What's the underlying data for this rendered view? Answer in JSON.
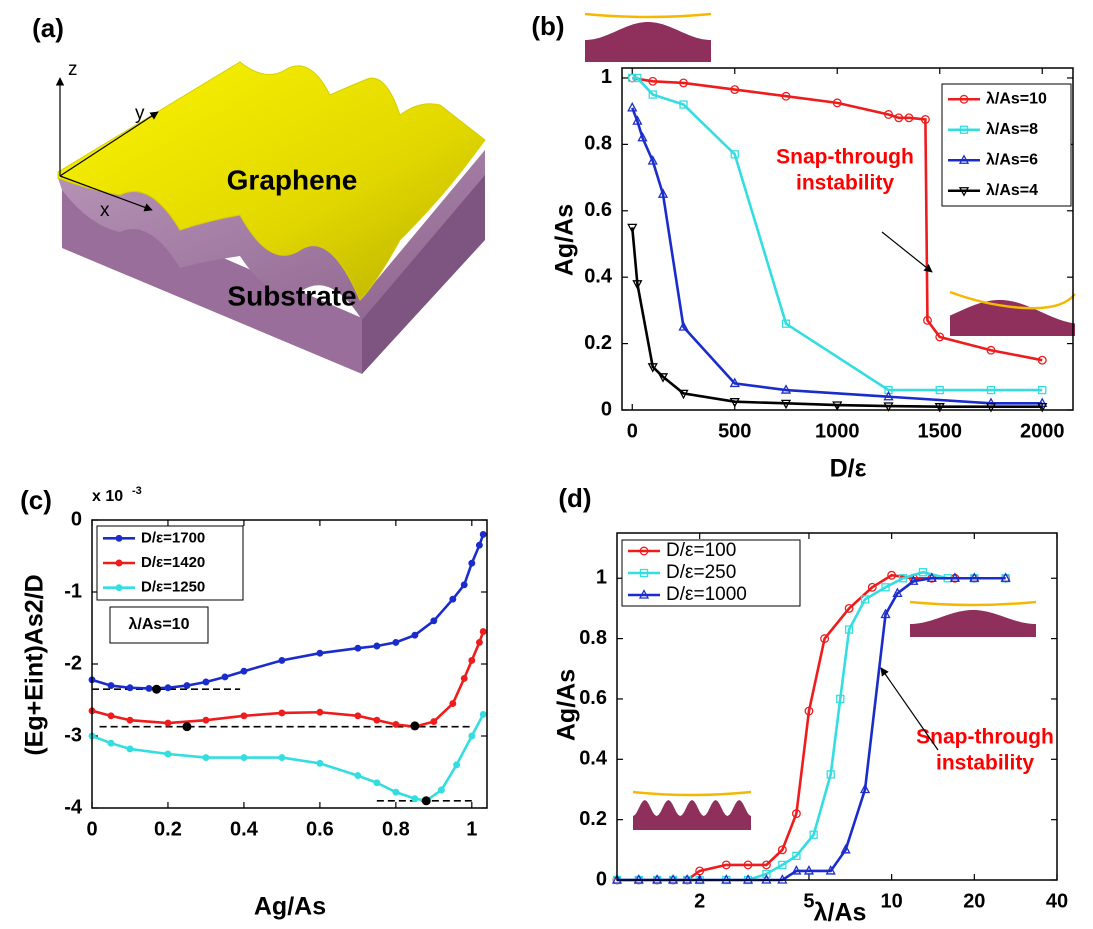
{
  "illustration": {
    "panel_label": "(a)",
    "axis_labels": [
      "z",
      "y",
      "x"
    ],
    "graphene": "Graphene",
    "substrate": "Substrate"
  },
  "chart_data": [
    {
      "type": "line",
      "panel_label": "(b)",
      "xlabel": "D/ε",
      "ylabel": "Ag/As",
      "xlim": [
        -50,
        2150
      ],
      "ylim": [
        0,
        1.03
      ],
      "xticks": [
        0,
        500,
        1000,
        1500,
        2000
      ],
      "yticks": [
        0,
        0.2,
        0.4,
        0.6,
        0.8,
        1
      ],
      "legend": "upper right",
      "annotation": [
        "Snap-through",
        "instability"
      ],
      "annotation_color": "#ff0000",
      "series": [
        {
          "name": "λ/As=10",
          "color": "#ee1c1c",
          "marker": "o",
          "x": [
            0,
            100,
            250,
            500,
            750,
            1000,
            1250,
            1300,
            1350,
            1430,
            1440,
            1500,
            1750,
            2000
          ],
          "values": [
            1,
            0.99,
            0.985,
            0.965,
            0.945,
            0.925,
            0.89,
            0.88,
            0.88,
            0.875,
            0.27,
            0.22,
            0.18,
            0.15
          ]
        },
        {
          "name": "λ/As=8",
          "color": "#33dde0",
          "marker": "s",
          "x": [
            0,
            25,
            100,
            250,
            500,
            750,
            1250,
            1500,
            1750,
            2000
          ],
          "values": [
            1,
            1,
            0.95,
            0.92,
            0.77,
            0.26,
            0.06,
            0.06,
            0.06,
            0.06
          ]
        },
        {
          "name": "λ/As=6",
          "color": "#1a2ccc",
          "marker": "^",
          "x": [
            0,
            25,
            50,
            100,
            150,
            250,
            500,
            750,
            1250,
            1750,
            2000
          ],
          "values": [
            0.91,
            0.87,
            0.82,
            0.75,
            0.65,
            0.25,
            0.08,
            0.06,
            0.04,
            0.02,
            0.02
          ]
        },
        {
          "name": "λ/As=4",
          "color": "#000000",
          "marker": "v",
          "x": [
            0,
            25,
            100,
            150,
            250,
            500,
            750,
            1000,
            1250,
            1500,
            1750,
            2000
          ],
          "values": [
            0.55,
            0.38,
            0.13,
            0.1,
            0.05,
            0.025,
            0.02,
            0.015,
            0.012,
            0.01,
            0.01,
            0.01
          ]
        }
      ]
    },
    {
      "type": "line",
      "panel_label": "(c)",
      "xlabel": "Ag/As",
      "ylabel": "(Eg+Eint)As2/D",
      "y_multiplier": {
        "base": "x 10",
        "exponent": "-3"
      },
      "xlim": [
        0,
        1.04
      ],
      "ylim": [
        -4,
        0
      ],
      "xticks": [
        0,
        0.2,
        0.4,
        0.6,
        0.8,
        1
      ],
      "yticks": [
        -4,
        -3,
        -2,
        -1,
        0
      ],
      "legend": "upper left",
      "note": "λ/As=10",
      "series": [
        {
          "name": "D/ε=1700",
          "color": "#1a2ccc",
          "marker": ".",
          "x": [
            0,
            0.05,
            0.1,
            0.15,
            0.2,
            0.25,
            0.3,
            0.35,
            0.4,
            0.5,
            0.6,
            0.7,
            0.75,
            0.8,
            0.85,
            0.9,
            0.95,
            0.98,
            1.0,
            1.02,
            1.03
          ],
          "values": [
            -2.22,
            -2.3,
            -2.33,
            -2.34,
            -2.33,
            -2.3,
            -2.25,
            -2.18,
            -2.1,
            -1.95,
            -1.85,
            -1.78,
            -1.75,
            -1.7,
            -1.6,
            -1.4,
            -1.1,
            -0.9,
            -0.6,
            -0.35,
            -0.2
          ]
        },
        {
          "name": "D/ε=1420",
          "color": "#ee1c1c",
          "marker": ".",
          "x": [
            0,
            0.05,
            0.1,
            0.2,
            0.3,
            0.4,
            0.5,
            0.6,
            0.7,
            0.75,
            0.8,
            0.85,
            0.9,
            0.95,
            0.98,
            1.0,
            1.02,
            1.03
          ],
          "values": [
            -2.65,
            -2.72,
            -2.78,
            -2.82,
            -2.78,
            -2.72,
            -2.68,
            -2.67,
            -2.72,
            -2.78,
            -2.84,
            -2.87,
            -2.8,
            -2.55,
            -2.2,
            -1.95,
            -1.7,
            -1.55
          ]
        },
        {
          "name": "D/ε=1250",
          "color": "#33dde0",
          "marker": ".",
          "x": [
            0,
            0.05,
            0.1,
            0.2,
            0.3,
            0.4,
            0.5,
            0.6,
            0.7,
            0.75,
            0.8,
            0.85,
            0.88,
            0.92,
            0.96,
            1.0,
            1.03
          ],
          "values": [
            -3.0,
            -3.1,
            -3.18,
            -3.25,
            -3.3,
            -3.3,
            -3.3,
            -3.38,
            -3.55,
            -3.65,
            -3.78,
            -3.87,
            -3.9,
            -3.75,
            -3.4,
            -3.0,
            -2.7
          ]
        }
      ],
      "minima": [
        {
          "x": 0.17,
          "y": -2.35
        },
        {
          "x": 0.25,
          "y": -2.87
        },
        {
          "x": 0.85,
          "y": -2.86
        },
        {
          "x": 0.88,
          "y": -3.9
        }
      ],
      "reference_lines": [
        {
          "y": -2.35,
          "x": [
            0,
            0.39
          ]
        },
        {
          "y": -2.87,
          "x": [
            0.02,
            1.0
          ]
        },
        {
          "y": -3.9,
          "x": [
            0.75,
            1.0
          ]
        }
      ]
    },
    {
      "type": "line",
      "panel_label": "(d)",
      "xlabel": "λ/As",
      "ylabel": "Ag/As",
      "xscale": "log",
      "xlim": [
        1,
        40
      ],
      "ylim": [
        0,
        1.15
      ],
      "xticks": [
        2,
        5,
        10,
        20,
        40
      ],
      "yticks": [
        0,
        0.2,
        0.4,
        0.6,
        0.8,
        1
      ],
      "legend": "upper left",
      "annotation": [
        "Snap-through",
        "instability"
      ],
      "annotation_color": "#ff0000",
      "series": [
        {
          "name": "D/ε=100",
          "color": "#ee1c1c",
          "marker": "o",
          "x": [
            1,
            1.2,
            1.4,
            1.6,
            1.8,
            2,
            2.5,
            3,
            3.5,
            4,
            4.5,
            5,
            5.7,
            7,
            8.5,
            10,
            12,
            14,
            17,
            20,
            26
          ],
          "values": [
            0,
            0,
            0,
            0,
            0,
            0.03,
            0.05,
            0.05,
            0.05,
            0.1,
            0.22,
            0.56,
            0.8,
            0.9,
            0.97,
            1.01,
            1,
            1,
            1,
            1,
            1
          ]
        },
        {
          "name": "D/ε=250",
          "color": "#33dde0",
          "marker": "s",
          "x": [
            1,
            1.2,
            1.4,
            1.6,
            1.8,
            2,
            2.5,
            3,
            3.5,
            4,
            4.5,
            5.2,
            6,
            6.5,
            7,
            8,
            9.5,
            11,
            13,
            16,
            20,
            26
          ],
          "values": [
            0,
            0,
            0,
            0,
            0,
            0,
            0,
            0,
            0.02,
            0.05,
            0.08,
            0.15,
            0.35,
            0.6,
            0.83,
            0.93,
            0.97,
            1.0,
            1.02,
            1,
            1,
            1
          ]
        },
        {
          "name": "D/ε=1000",
          "color": "#1a2ccc",
          "marker": "^",
          "x": [
            1,
            1.2,
            1.4,
            1.6,
            1.8,
            2,
            2.5,
            3,
            3.5,
            4,
            4.5,
            5,
            6,
            6.8,
            8,
            9.5,
            10.5,
            12,
            14,
            17,
            20,
            26
          ],
          "values": [
            0,
            0,
            0,
            0,
            0,
            0,
            0,
            0,
            0,
            0,
            0.03,
            0.03,
            0.03,
            0.1,
            0.3,
            0.88,
            0.95,
            0.99,
            1,
            1,
            1,
            1
          ]
        }
      ]
    }
  ]
}
